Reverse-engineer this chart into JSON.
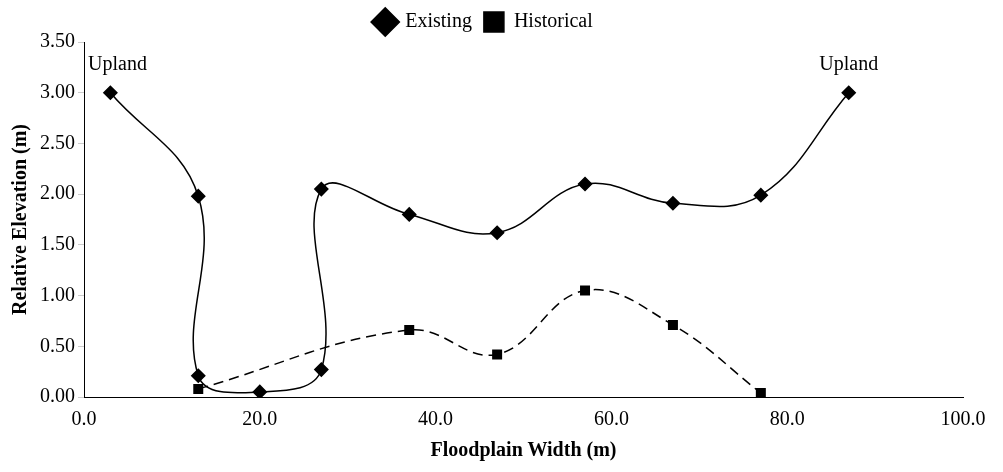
{
  "chart_data": {
    "type": "line",
    "xlabel": "Floodplain Width (m)",
    "ylabel": "Relative Elevation (m)",
    "xlim": [
      0,
      100
    ],
    "xticks": [
      {
        "value": 0,
        "label": "0.0"
      },
      {
        "value": 20,
        "label": "20.0"
      },
      {
        "value": 40,
        "label": "40.0"
      },
      {
        "value": 60,
        "label": "60.0"
      },
      {
        "value": 80,
        "label": "80.0"
      },
      {
        "value": 100,
        "label": "100.0"
      }
    ],
    "ylim": [
      0,
      3.5
    ],
    "yticks": [
      {
        "value": 0,
        "label": "0.00"
      },
      {
        "value": 0.5,
        "label": "0.50"
      },
      {
        "value": 1,
        "label": "1.00"
      },
      {
        "value": 1.5,
        "label": "1.50"
      },
      {
        "value": 2,
        "label": "2.00"
      },
      {
        "value": 2.5,
        "label": "2.50"
      },
      {
        "value": 3,
        "label": "3.00"
      },
      {
        "value": 3.5,
        "label": "3.50"
      }
    ],
    "grid": false,
    "legend": "top",
    "series": [
      {
        "name": "Existing",
        "color": "#000000",
        "marker": "diamond",
        "line_style": "solid",
        "x": [
          3,
          13,
          13,
          20,
          27,
          27,
          37,
          47,
          57,
          67,
          77,
          87
        ],
        "values": [
          3.0,
          1.98,
          0.21,
          0.05,
          0.27,
          2.05,
          1.8,
          1.62,
          2.1,
          1.91,
          1.99,
          3.0
        ]
      },
      {
        "name": "Historical",
        "color": "#000000",
        "marker": "square",
        "line_style": "dashed",
        "x": [
          13,
          37,
          47,
          57,
          67,
          77
        ],
        "values": [
          0.08,
          0.66,
          0.42,
          1.05,
          0.71,
          0.04
        ]
      }
    ],
    "annotations": [
      {
        "text": "Upland",
        "x": 3,
        "y": 3.0
      },
      {
        "text": "Upland",
        "x": 87,
        "y": 3.0
      }
    ]
  }
}
